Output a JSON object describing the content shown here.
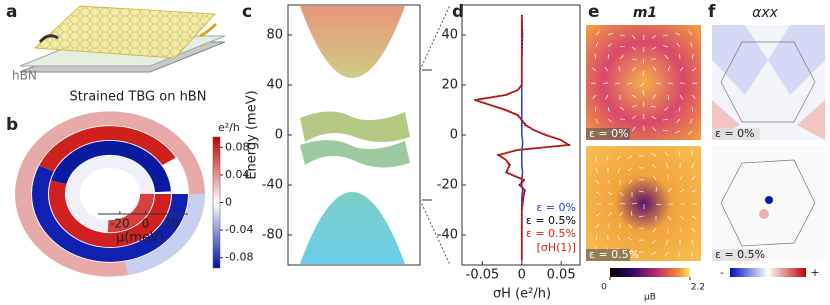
{
  "panel_a": {
    "label": "a",
    "substrate": "hBN",
    "caption": "Strained TBG on hBN"
  },
  "panel_b": {
    "label": "b",
    "colorbar_title": "e²/h",
    "colorbar_lim": [
      -0.095,
      0.095
    ],
    "colorbar_ticks": [
      0.08,
      0.04,
      0,
      -0.04,
      -0.08
    ],
    "x_label": "μ(meV)",
    "xlim": [
      -37,
      33
    ],
    "xticks": [
      -20,
      0,
      20
    ]
  },
  "panel_c": {
    "label": "c",
    "y_label": "Energy (meV)",
    "ylim": [
      -104,
      104
    ],
    "yticks": [
      80,
      40,
      0,
      -40,
      -80
    ]
  },
  "panel_d": {
    "label": "d",
    "x_label": "σH (e²/h)",
    "xlim": [
      -0.076,
      0.074
    ],
    "xticks": [
      -0.05,
      0,
      0.05
    ],
    "ylim": [
      -52,
      52
    ],
    "yticks": [
      40,
      20,
      0,
      -20,
      -40
    ],
    "energies": [
      -50,
      -40,
      -30,
      -25,
      -22,
      -20,
      -18,
      -15,
      -12,
      -10,
      -8,
      -6,
      -4,
      -2,
      0,
      2,
      4,
      6,
      8,
      10,
      12,
      14,
      16,
      18,
      20,
      30,
      40,
      48
    ],
    "series": [
      {
        "name": "ε = 0%",
        "color": "#1f3fd6",
        "style": "solid",
        "values": [
          0,
          0,
          0,
          0,
          0.001,
          0,
          0,
          0.001,
          0,
          0,
          0,
          0,
          0.001,
          0.001,
          0,
          0,
          0,
          0,
          0,
          0,
          0,
          0,
          0,
          0,
          0,
          0,
          0.001,
          0
        ]
      },
      {
        "name": "ε = 0.5%",
        "color": "#000000",
        "style": "solid",
        "values": [
          0,
          0,
          0,
          0.002,
          0.004,
          -0.003,
          0.003,
          -0.02,
          -0.015,
          -0.02,
          -0.03,
          -0.005,
          0.06,
          0.05,
          0.03,
          0.015,
          0.005,
          0,
          -0.005,
          -0.02,
          -0.04,
          -0.06,
          -0.02,
          -0.005,
          0,
          0,
          0,
          0
        ]
      },
      {
        "name": "ε = 0.5%",
        "color": "#e0201c",
        "style": "dotted",
        "values": [
          0,
          0,
          0,
          0.002,
          0.003,
          -0.002,
          0.003,
          -0.019,
          -0.016,
          -0.02,
          -0.029,
          -0.006,
          0.059,
          0.05,
          0.031,
          0.015,
          0.004,
          0,
          -0.006,
          -0.021,
          -0.04,
          -0.059,
          -0.021,
          -0.005,
          0,
          0,
          0,
          0
        ]
      }
    ],
    "red_note": "[σH(1)]"
  },
  "panel_e": {
    "label": "e",
    "title": "m1",
    "image_labels": [
      "ε = 0%",
      "ε = 0.5%"
    ],
    "colorbar_lim": [
      0,
      2.2
    ],
    "colorbar_ticks": [
      0,
      2.2
    ],
    "colorbar_unit": "μB"
  },
  "panel_f": {
    "label": "f",
    "title": "αxx",
    "image_labels": [
      "ε = 0%",
      "ε = 0.5%"
    ],
    "colorbar_labels": [
      "-",
      "+"
    ]
  }
}
